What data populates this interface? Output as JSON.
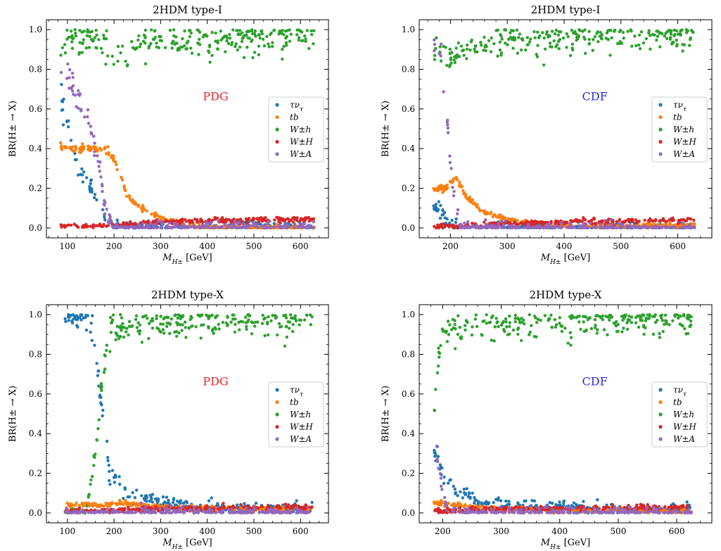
{
  "colors": {
    "tau_nu": "#1f77b4",
    "tb": "#ff7f0e",
    "Wh": "#2ca02c",
    "WH": "#d62728",
    "WA": "#9467bd",
    "PDG": "#e8282b",
    "CDF": "#2a2ae0"
  },
  "legend_entries": [
    {
      "key": "tau_nu",
      "label": "τν_τ"
    },
    {
      "key": "tb",
      "label": "tb"
    },
    {
      "key": "Wh",
      "label": "W±h"
    },
    {
      "key": "WH",
      "label": "W±H"
    },
    {
      "key": "WA",
      "label": "W±A"
    }
  ],
  "chart_data": [
    {
      "type": "scatter",
      "title": "2HDM type-I",
      "annotation": "PDG",
      "annotation_color_key": "PDG",
      "xlabel": "M_{H±} [GeV]",
      "ylabel": "BR(H± → X)",
      "xlim": [
        55,
        660
      ],
      "ylim": [
        -0.05,
        1.05
      ],
      "xticks": [
        100,
        200,
        300,
        400,
        500,
        600
      ],
      "yticks": [
        0.0,
        0.2,
        0.4,
        0.6,
        0.8,
        1.0
      ],
      "legend_position": "center-right",
      "mass_range": [
        85,
        630
      ],
      "series": [
        {
          "name": "τν_τ",
          "key": "tau_nu",
          "description_points": [
            [
              90,
              0.65
            ],
            [
              100,
              0.55
            ],
            [
              110,
              0.4
            ],
            [
              120,
              0.3
            ],
            [
              150,
              0.2
            ],
            [
              170,
              0.1
            ],
            [
              200,
              0.0
            ]
          ]
        },
        {
          "name": "tb",
          "key": "tb",
          "description_points": [
            [
              180,
              0.4
            ],
            [
              200,
              0.35
            ],
            [
              230,
              0.15
            ],
            [
              260,
              0.1
            ],
            [
              300,
              0.05
            ],
            [
              350,
              0.02
            ],
            [
              400,
              0.0
            ]
          ]
        },
        {
          "name": "W±h",
          "key": "Wh",
          "description_points": [
            [
              100,
              0.95
            ],
            [
              150,
              0.97
            ],
            [
              200,
              0.85
            ],
            [
              250,
              0.9
            ],
            [
              300,
              0.93
            ],
            [
              400,
              0.96
            ],
            [
              600,
              0.97
            ]
          ]
        },
        {
          "name": "W±H",
          "key": "WH",
          "description_points": [
            [
              180,
              0.01
            ],
            [
              300,
              0.03
            ],
            [
              400,
              0.035
            ],
            [
              500,
              0.04
            ],
            [
              630,
              0.045
            ]
          ]
        },
        {
          "name": "W±A",
          "key": "WA",
          "description_points": [
            [
              100,
              0.8
            ],
            [
              130,
              0.6
            ],
            [
              150,
              0.5
            ],
            [
              170,
              0.3
            ],
            [
              180,
              0.1
            ],
            [
              200,
              0.0
            ]
          ]
        }
      ]
    },
    {
      "type": "scatter",
      "title": "2HDM type-I",
      "annotation": "CDF",
      "annotation_color_key": "CDF",
      "xlabel": "M_{H±} [GeV]",
      "ylabel": "BR(H± → X)",
      "xlim": [
        145,
        660
      ],
      "ylim": [
        -0.05,
        1.05
      ],
      "xticks": [
        200,
        300,
        400,
        500,
        600
      ],
      "yticks": [
        0.0,
        0.2,
        0.4,
        0.6,
        0.8,
        1.0
      ],
      "legend_position": "center-right",
      "mass_range": [
        170,
        630
      ],
      "series": [
        {
          "name": "τν_τ",
          "key": "tau_nu",
          "description_points": [
            [
              180,
              0.1
            ],
            [
              190,
              0.05
            ],
            [
              200,
              0.02
            ],
            [
              220,
              0.0
            ]
          ]
        },
        {
          "name": "tb",
          "key": "tb",
          "description_points": [
            [
              190,
              0.2
            ],
            [
              210,
              0.25
            ],
            [
              230,
              0.15
            ],
            [
              260,
              0.08
            ],
            [
              300,
              0.04
            ],
            [
              400,
              0.01
            ]
          ]
        },
        {
          "name": "W±h",
          "key": "Wh",
          "description_points": [
            [
              180,
              0.9
            ],
            [
              200,
              0.85
            ],
            [
              230,
              0.9
            ],
            [
              300,
              0.94
            ],
            [
              400,
              0.96
            ],
            [
              600,
              0.97
            ]
          ]
        },
        {
          "name": "W±H",
          "key": "WH",
          "description_points": [
            [
              200,
              0.01
            ],
            [
              300,
              0.02
            ],
            [
              400,
              0.03
            ],
            [
              500,
              0.035
            ],
            [
              630,
              0.04
            ]
          ]
        },
        {
          "name": "W±A",
          "key": "WA",
          "description_points": [
            [
              180,
              0.95
            ],
            [
              190,
              0.7
            ],
            [
              200,
              0.3
            ],
            [
              210,
              0.1
            ],
            [
              220,
              0.0
            ]
          ]
        }
      ]
    },
    {
      "type": "scatter",
      "title": "2HDM type-X",
      "annotation": "PDG",
      "annotation_color_key": "PDG",
      "xlabel": "M_{H±} [GeV]",
      "ylabel": "BR(H± → X)",
      "xlim": [
        55,
        660
      ],
      "ylim": [
        -0.05,
        1.05
      ],
      "xticks": [
        100,
        200,
        300,
        400,
        500,
        600
      ],
      "yticks": [
        0.0,
        0.2,
        0.4,
        0.6,
        0.8,
        1.0
      ],
      "legend_position": "center-right",
      "mass_range": [
        95,
        625
      ],
      "series": [
        {
          "name": "τν_τ",
          "key": "tau_nu",
          "description_points": [
            [
              100,
              1.0
            ],
            [
              150,
              0.98
            ],
            [
              170,
              0.6
            ],
            [
              190,
              0.2
            ],
            [
              230,
              0.1
            ],
            [
              300,
              0.05
            ],
            [
              400,
              0.02
            ]
          ]
        },
        {
          "name": "tb",
          "key": "tb",
          "description_points": [
            [
              180,
              0.04
            ],
            [
              220,
              0.05
            ],
            [
              300,
              0.03
            ],
            [
              400,
              0.02
            ]
          ]
        },
        {
          "name": "W±h",
          "key": "Wh",
          "description_points": [
            [
              140,
              0.0
            ],
            [
              160,
              0.3
            ],
            [
              175,
              0.7
            ],
            [
              190,
              0.92
            ],
            [
              250,
              0.94
            ],
            [
              400,
              0.97
            ],
            [
              600,
              0.98
            ]
          ]
        },
        {
          "name": "W±H",
          "key": "WH",
          "description_points": [
            [
              200,
              0.01
            ],
            [
              300,
              0.02
            ],
            [
              450,
              0.025
            ],
            [
              600,
              0.03
            ]
          ]
        },
        {
          "name": "W±A",
          "key": "WA",
          "description_points": [
            [
              100,
              0.0
            ],
            [
              600,
              0.0
            ]
          ]
        }
      ]
    },
    {
      "type": "scatter",
      "title": "2HDM type-X",
      "annotation": "CDF",
      "annotation_color_key": "CDF",
      "xlabel": "M_{H±} [GeV]",
      "ylabel": "BR(H± → X)",
      "xlim": [
        160,
        660
      ],
      "ylim": [
        -0.05,
        1.05
      ],
      "xticks": [
        200,
        300,
        400,
        500,
        600
      ],
      "yticks": [
        0.0,
        0.2,
        0.4,
        0.6,
        0.8,
        1.0
      ],
      "legend_position": "center-right",
      "mass_range": [
        185,
        625
      ],
      "series": [
        {
          "name": "τν_τ",
          "key": "tau_nu",
          "description_points": [
            [
              190,
              0.3
            ],
            [
              200,
              0.2
            ],
            [
              220,
              0.12
            ],
            [
              260,
              0.06
            ],
            [
              300,
              0.04
            ],
            [
              400,
              0.02
            ]
          ]
        },
        {
          "name": "tb",
          "key": "tb",
          "description_points": [
            [
              190,
              0.05
            ],
            [
              220,
              0.04
            ],
            [
              300,
              0.02
            ],
            [
              400,
              0.01
            ]
          ]
        },
        {
          "name": "W±h",
          "key": "Wh",
          "description_points": [
            [
              185,
              0.5
            ],
            [
              195,
              0.85
            ],
            [
              210,
              0.93
            ],
            [
              300,
              0.96
            ],
            [
              600,
              0.98
            ]
          ]
        },
        {
          "name": "W±H",
          "key": "WH",
          "description_points": [
            [
              200,
              0.01
            ],
            [
              300,
              0.02
            ],
            [
              450,
              0.025
            ],
            [
              600,
              0.03
            ]
          ]
        },
        {
          "name": "W±A",
          "key": "WA",
          "description_points": [
            [
              190,
              0.3
            ],
            [
              200,
              0.1
            ],
            [
              210,
              0.0
            ],
            [
              600,
              0.0
            ]
          ]
        }
      ]
    }
  ]
}
